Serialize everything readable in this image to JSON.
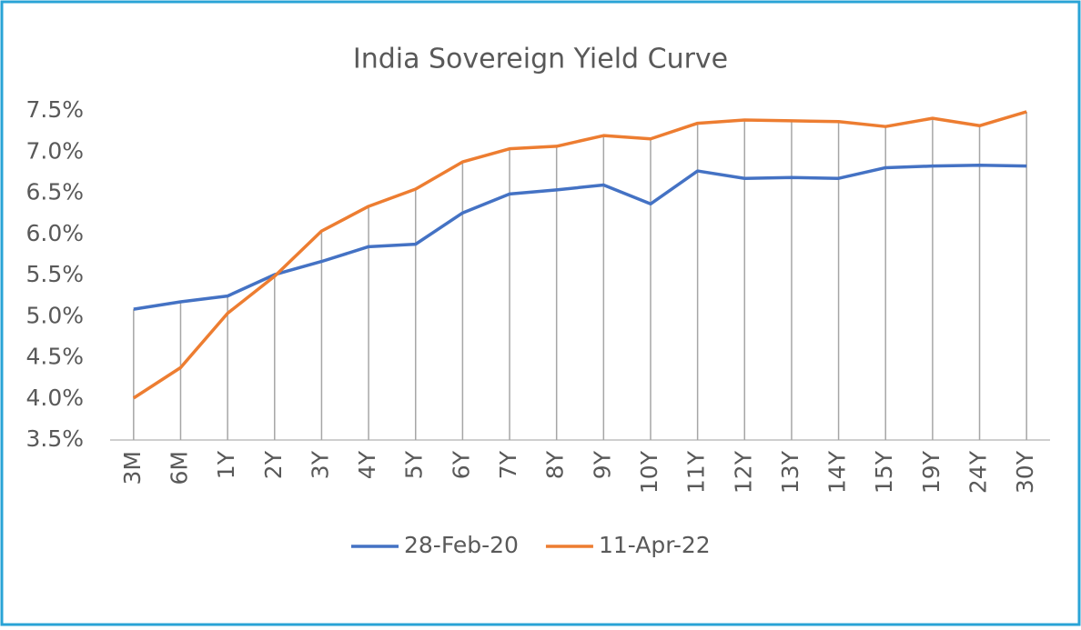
{
  "chart_data": {
    "type": "line",
    "title": "India Sovereign Yield Curve",
    "categories": [
      "3M",
      "6M",
      "1Y",
      "2Y",
      "3Y",
      "4Y",
      "5Y",
      "6Y",
      "7Y",
      "8Y",
      "9Y",
      "10Y",
      "11Y",
      "12Y",
      "13Y",
      "14Y",
      "15Y",
      "19Y",
      "24Y",
      "30Y"
    ],
    "series": [
      {
        "name": "28-Feb-20",
        "color": "#4472c4",
        "values": [
          5.09,
          5.18,
          5.25,
          5.51,
          5.67,
          5.85,
          5.88,
          6.26,
          6.49,
          6.54,
          6.6,
          6.37,
          6.77,
          6.68,
          6.69,
          6.68,
          6.81,
          6.83,
          6.84,
          6.83
        ]
      },
      {
        "name": "11-Apr-22",
        "color": "#ed7d31",
        "values": [
          4.01,
          4.38,
          5.04,
          5.49,
          6.04,
          6.34,
          6.55,
          6.88,
          7.04,
          7.07,
          7.2,
          7.16,
          7.35,
          7.39,
          7.38,
          7.37,
          7.31,
          7.41,
          7.32,
          7.49
        ]
      }
    ],
    "ylim": [
      3.5,
      7.5
    ],
    "yticks": [
      {
        "value": 3.5,
        "label": "3.5%"
      },
      {
        "value": 4.0,
        "label": "4.0%"
      },
      {
        "value": 4.5,
        "label": "4.5%"
      },
      {
        "value": 5.0,
        "label": "5.0%"
      },
      {
        "value": 5.5,
        "label": "5.5%"
      },
      {
        "value": 6.0,
        "label": "6.0%"
      },
      {
        "value": 6.5,
        "label": "6.5%"
      },
      {
        "value": 7.0,
        "label": "7.0%"
      },
      {
        "value": 7.5,
        "label": "7.5%"
      }
    ],
    "drop_lines": true,
    "legend": "bottom"
  }
}
